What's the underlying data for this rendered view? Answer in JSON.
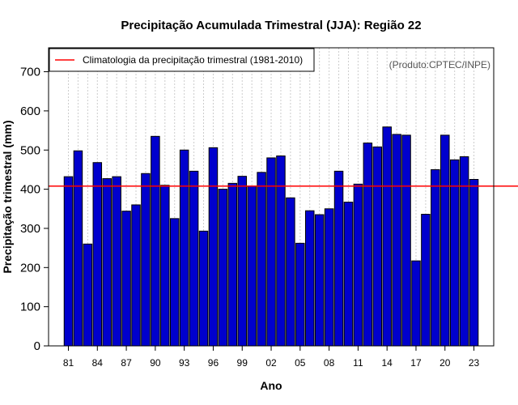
{
  "colors": {
    "bar_fill": "#0000CD",
    "bar_stroke": "#000000",
    "clim_line": "#FF0000",
    "grid": "#cccccc",
    "credit": "#555555"
  },
  "chart_data": {
    "type": "bar",
    "title": "Precipitação Acumulada Trimestral (JJA): Região 22",
    "xlabel": "Ano",
    "ylabel": "Precipitação trimestral (mm)",
    "ylim": [
      0,
      760
    ],
    "yticks": [
      0,
      100,
      200,
      300,
      400,
      500,
      600,
      700
    ],
    "xtick_labels": [
      "81",
      "84",
      "87",
      "90",
      "93",
      "96",
      "99",
      "02",
      "05",
      "08",
      "11",
      "14",
      "17",
      "20",
      "23"
    ],
    "years": [
      1981,
      1982,
      1983,
      1984,
      1985,
      1986,
      1987,
      1988,
      1989,
      1990,
      1991,
      1992,
      1993,
      1994,
      1995,
      1996,
      1997,
      1998,
      1999,
      2000,
      2001,
      2002,
      2003,
      2004,
      2005,
      2006,
      2007,
      2008,
      2009,
      2010,
      2011,
      2012,
      2013,
      2014,
      2015,
      2016,
      2017,
      2018,
      2019,
      2020,
      2021,
      2022,
      2023
    ],
    "values": [
      432,
      498,
      260,
      468,
      427,
      432,
      344,
      360,
      440,
      535,
      410,
      325,
      500,
      446,
      293,
      506,
      400,
      415,
      433,
      408,
      443,
      480,
      485,
      378,
      262,
      345,
      335,
      350,
      446,
      367,
      413,
      518,
      508,
      559,
      540,
      538,
      217,
      336,
      450,
      538,
      475,
      483,
      425
    ],
    "climatology": 408,
    "legend": {
      "label": "Climatologia da precipitação trimestral (1981-2010)",
      "position": "top-left"
    },
    "credit": "(Produto:CPTEC/INPE)"
  }
}
